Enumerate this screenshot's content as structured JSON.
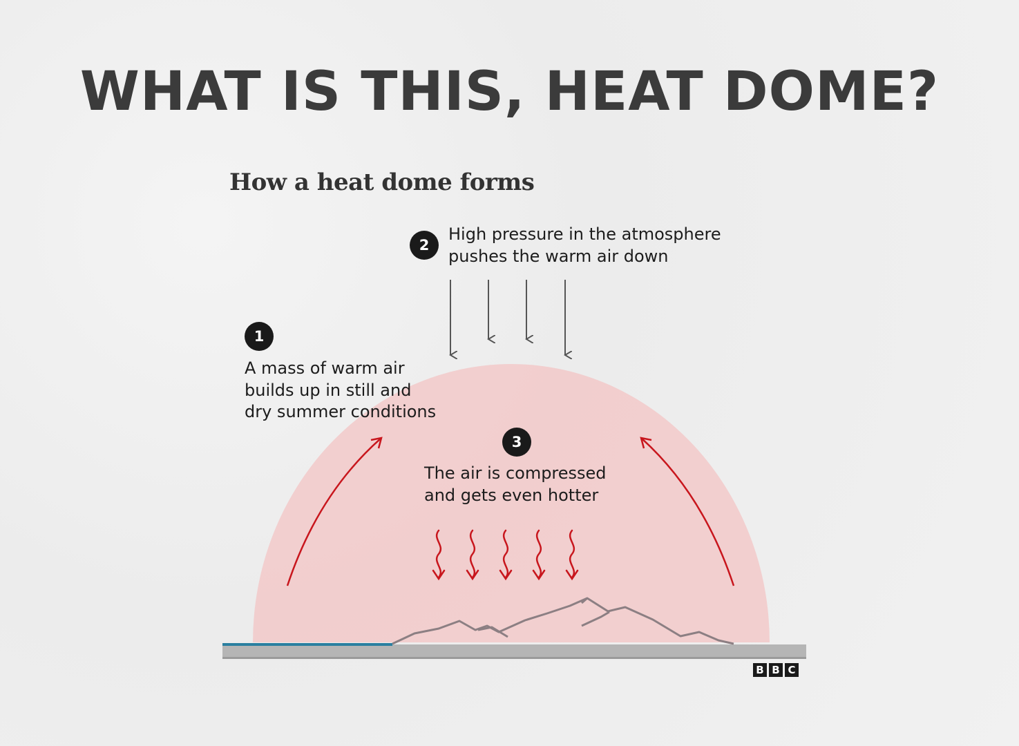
{
  "title": "WHAT IS THIS, HEAT DOME?",
  "subtitle": "How a heat dome forms",
  "steps": [
    {
      "number": "1",
      "text": "A mass of warm air\nbuilds up in still and\ndry summer conditions"
    },
    {
      "number": "2",
      "text": "High pressure in the atmosphere\npushes the warm air down"
    },
    {
      "number": "3",
      "text": "The air is compressed\nand gets even hotter"
    }
  ],
  "logo": {
    "letters": [
      "B",
      "B",
      "C"
    ]
  },
  "colors": {
    "dome": "#f2c9c9",
    "arrow_red": "#c8161d",
    "arrow_grey": "#555555",
    "mountain": "#8c7f83",
    "ground": "#b5b5b5",
    "water": "#2a7fa0",
    "badge": "#1a1a1a"
  }
}
